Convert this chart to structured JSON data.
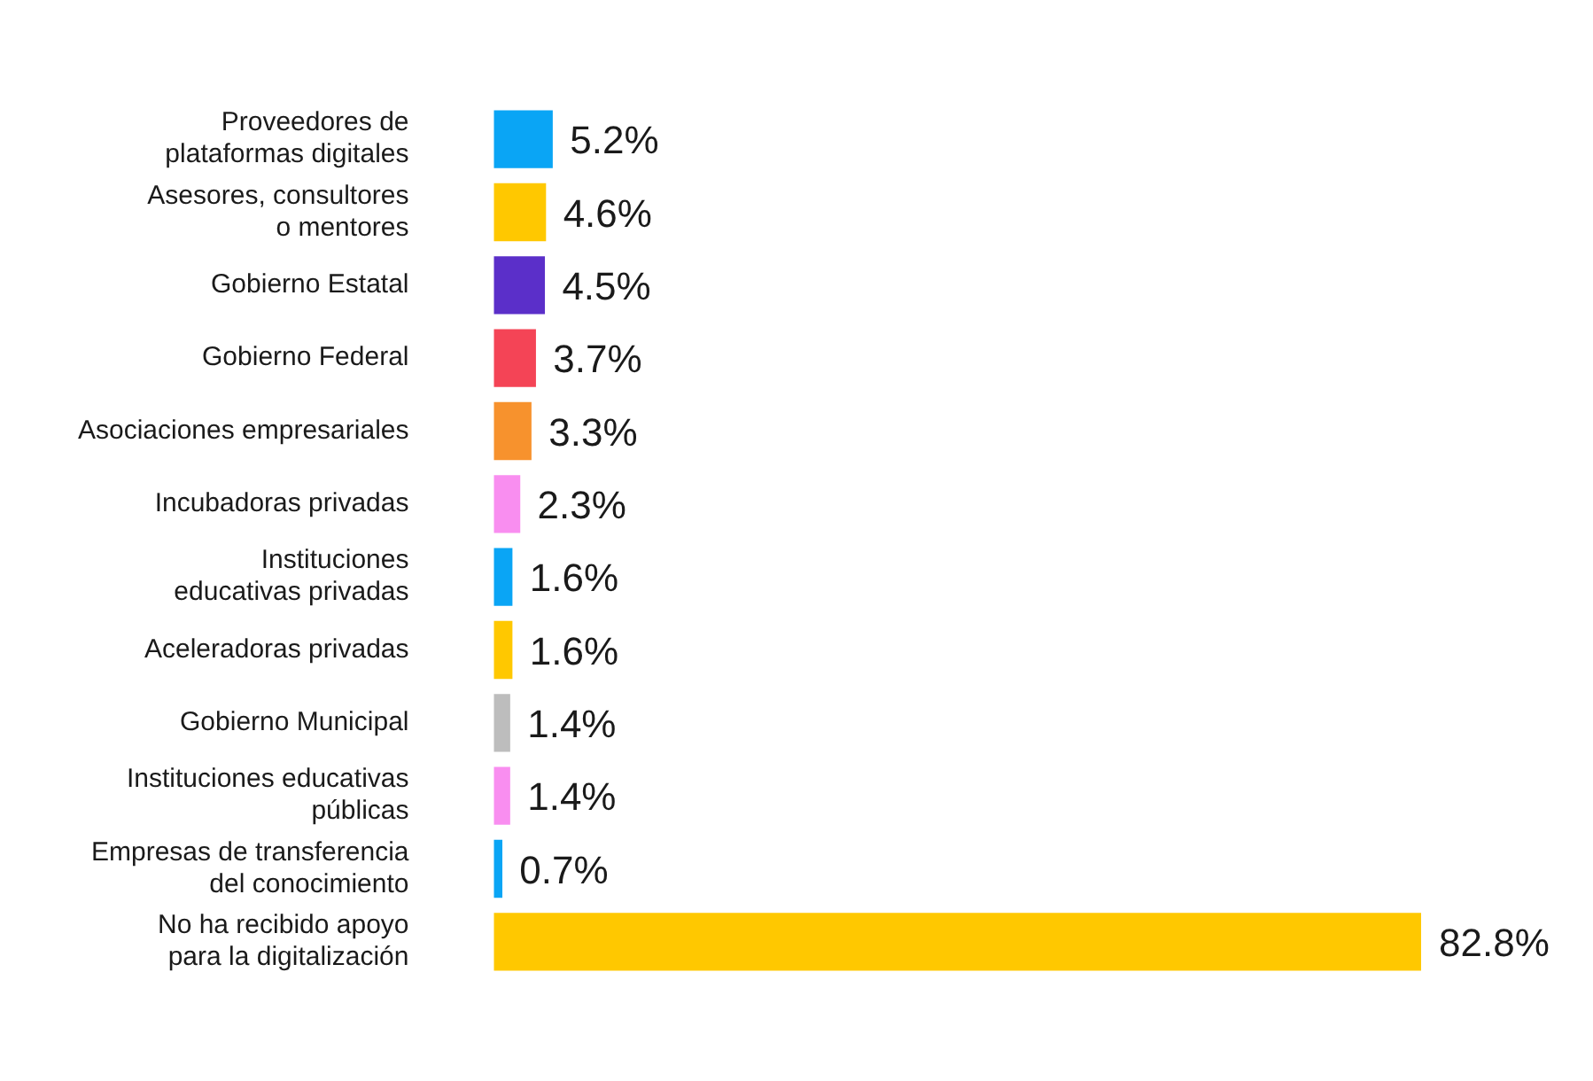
{
  "chart_data": {
    "type": "bar",
    "orientation": "horizontal",
    "categories": [
      "Proveedores de\nplataformas digitales",
      "Asesores, consultores\no mentores",
      "Gobierno Estatal",
      "Gobierno Federal",
      "Asociaciones empresariales",
      "Incubadoras privadas",
      "Instituciones\neducativas privadas",
      "Aceleradoras privadas",
      "Gobierno Municipal",
      "Instituciones educativas\npúblicas",
      "Empresas de transferencia\ndel conocimiento",
      "No ha recibido apoyo\npara la digitalización"
    ],
    "values": [
      5.2,
      4.6,
      4.5,
      3.7,
      3.3,
      2.3,
      1.6,
      1.6,
      1.4,
      1.4,
      0.7,
      82.8
    ],
    "value_labels": [
      "5.2%",
      "4.6%",
      "4.5%",
      "3.7%",
      "3.3%",
      "2.3%",
      "1.6%",
      "1.6%",
      "1.4%",
      "1.4%",
      "0.7%",
      "82.8%"
    ],
    "colors": [
      "#0aa5f5",
      "#ffc800",
      "#5b2fc9",
      "#f44456",
      "#f7922d",
      "#f98ef0",
      "#0aa5f5",
      "#ffc800",
      "#bdbdbd",
      "#f98ef0",
      "#0aa5f5",
      "#ffc800"
    ],
    "legend": false
  }
}
